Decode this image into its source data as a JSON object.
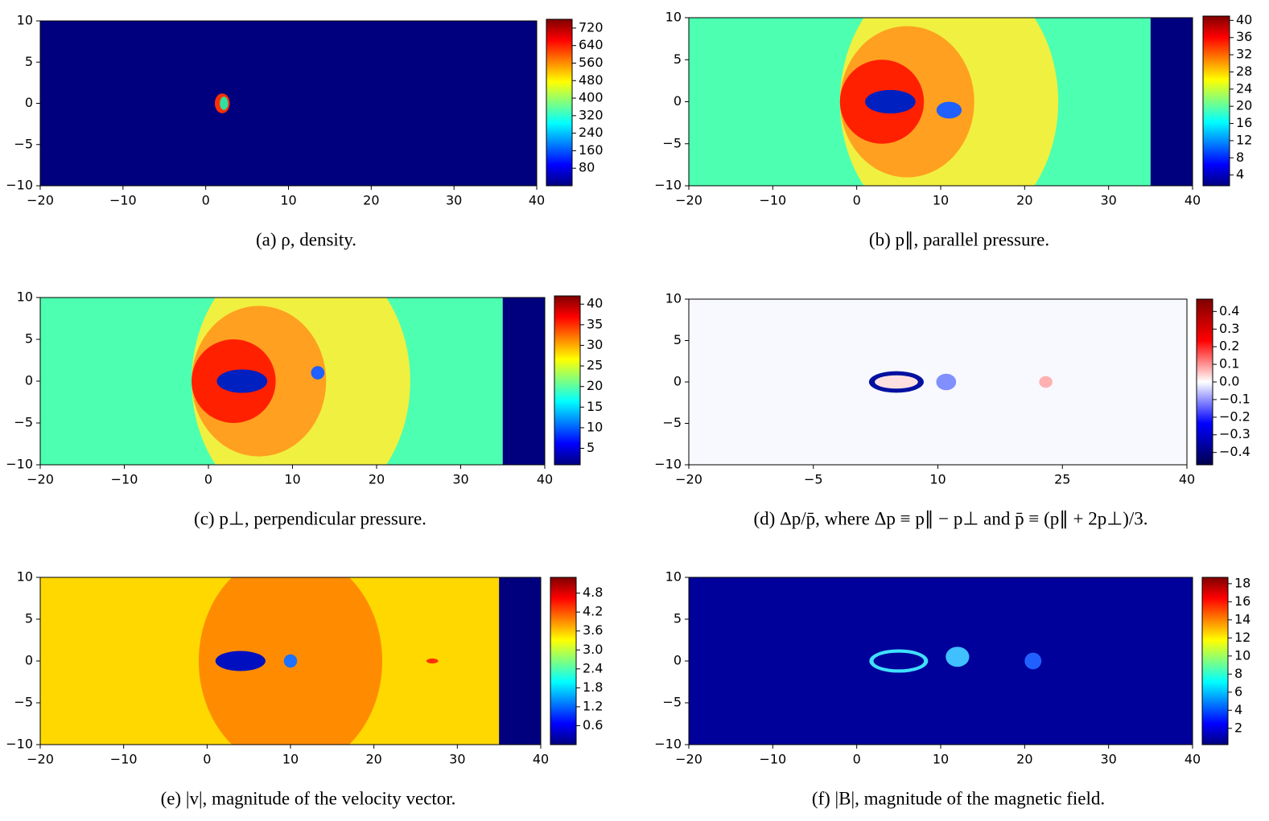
{
  "chart_data": [
    {
      "type": "heatmap",
      "caption": "(a) ρ, density.",
      "xlim": [
        -20,
        40
      ],
      "ylim": [
        -10,
        10
      ],
      "xticks": [
        {
          "value": -20,
          "label": "−20"
        },
        {
          "value": -10,
          "label": "−10"
        },
        0,
        10,
        20,
        30,
        40
      ],
      "yticks": [
        {
          "value": -10,
          "label": "−10"
        },
        {
          "value": -5,
          "label": "−5"
        },
        0,
        5,
        10
      ],
      "colorbar": {
        "colormap": "jet",
        "lim": [
          0,
          760
        ],
        "ticks": [
          80,
          160,
          240,
          320,
          400,
          480,
          560,
          640,
          720
        ]
      }
    },
    {
      "type": "heatmap",
      "caption": "(b) p∥, parallel pressure.",
      "xlim": [
        -20,
        40
      ],
      "ylim": [
        -10,
        10
      ],
      "xticks": [
        {
          "value": -20,
          "label": "−20"
        },
        {
          "value": -10,
          "label": "−10"
        },
        0,
        10,
        20,
        30,
        40
      ],
      "yticks": [
        {
          "value": -10,
          "label": "−10"
        },
        {
          "value": -5,
          "label": "−5"
        },
        0,
        5,
        10
      ],
      "colorbar": {
        "colormap": "jet",
        "lim": [
          1.5,
          41
        ],
        "ticks": [
          4,
          8,
          12,
          16,
          20,
          24,
          28,
          32,
          36,
          40
        ]
      }
    },
    {
      "type": "heatmap",
      "caption": "(c) p⊥, perpendicular pressure.",
      "xlim": [
        -20,
        40
      ],
      "ylim": [
        -10,
        10
      ],
      "xticks": [
        {
          "value": -20,
          "label": "−20"
        },
        {
          "value": -10,
          "label": "−10"
        },
        0,
        10,
        20,
        30,
        40
      ],
      "yticks": [
        {
          "value": -10,
          "label": "−10"
        },
        {
          "value": -5,
          "label": "−5"
        },
        0,
        5,
        10
      ],
      "colorbar": {
        "colormap": "jet",
        "lim": [
          1,
          42
        ],
        "ticks": [
          5,
          10,
          15,
          20,
          25,
          30,
          35,
          40
        ]
      }
    },
    {
      "type": "heatmap",
      "caption": "(d) Δp/p̄, where Δp ≡ p∥ − p⊥ and p̄ ≡ (p∥ + 2p⊥)/3.",
      "xlim": [
        -20,
        40
      ],
      "ylim": [
        -10,
        10
      ],
      "xticks": [
        {
          "value": -20,
          "label": "−20"
        },
        {
          "value": -5,
          "label": "−5"
        },
        10,
        25,
        40
      ],
      "yticks": [
        {
          "value": -10,
          "label": "−10"
        },
        {
          "value": -5,
          "label": "−5"
        },
        0,
        5,
        10
      ],
      "colorbar": {
        "colormap": "seismic",
        "lim": [
          -0.47,
          0.47
        ],
        "ticks": [
          {
            "value": -0.4,
            "label": "−0.4"
          },
          {
            "value": -0.3,
            "label": "−0.3"
          },
          {
            "value": -0.2,
            "label": "−0.2"
          },
          {
            "value": -0.1,
            "label": "−0.1"
          },
          {
            "value": 0,
            "label": "0.0"
          },
          0.1,
          0.2,
          0.3,
          0.4
        ]
      }
    },
    {
      "type": "heatmap",
      "caption": "(e) |v|, magnitude of the velocity vector.",
      "xlim": [
        -20,
        40
      ],
      "ylim": [
        -10,
        10
      ],
      "xticks": [
        {
          "value": -20,
          "label": "−20"
        },
        {
          "value": -10,
          "label": "−10"
        },
        0,
        10,
        20,
        30,
        40
      ],
      "yticks": [
        {
          "value": -10,
          "label": "−10"
        },
        {
          "value": -5,
          "label": "−5"
        },
        0,
        5,
        10
      ],
      "colorbar": {
        "colormap": "jet",
        "lim": [
          0,
          5.3
        ],
        "ticks": [
          0.6,
          1.2,
          1.8,
          2.4,
          {
            "value": 3,
            "label": "3.0"
          },
          3.6,
          4.2,
          4.8
        ]
      }
    },
    {
      "type": "heatmap",
      "caption": "(f) |B|, magnitude of the magnetic field.",
      "xlim": [
        -20,
        40
      ],
      "ylim": [
        -10,
        10
      ],
      "xticks": [
        {
          "value": -20,
          "label": "−20"
        },
        {
          "value": -10,
          "label": "−10"
        },
        0,
        10,
        20,
        30,
        40
      ],
      "yticks": [
        {
          "value": -10,
          "label": "−10"
        },
        {
          "value": -5,
          "label": "−5"
        },
        0,
        5,
        10
      ],
      "colorbar": {
        "colormap": "jet",
        "lim": [
          0.2,
          18.7
        ],
        "ticks": [
          2,
          4,
          6,
          8,
          10,
          12,
          14,
          16,
          18
        ]
      }
    }
  ]
}
